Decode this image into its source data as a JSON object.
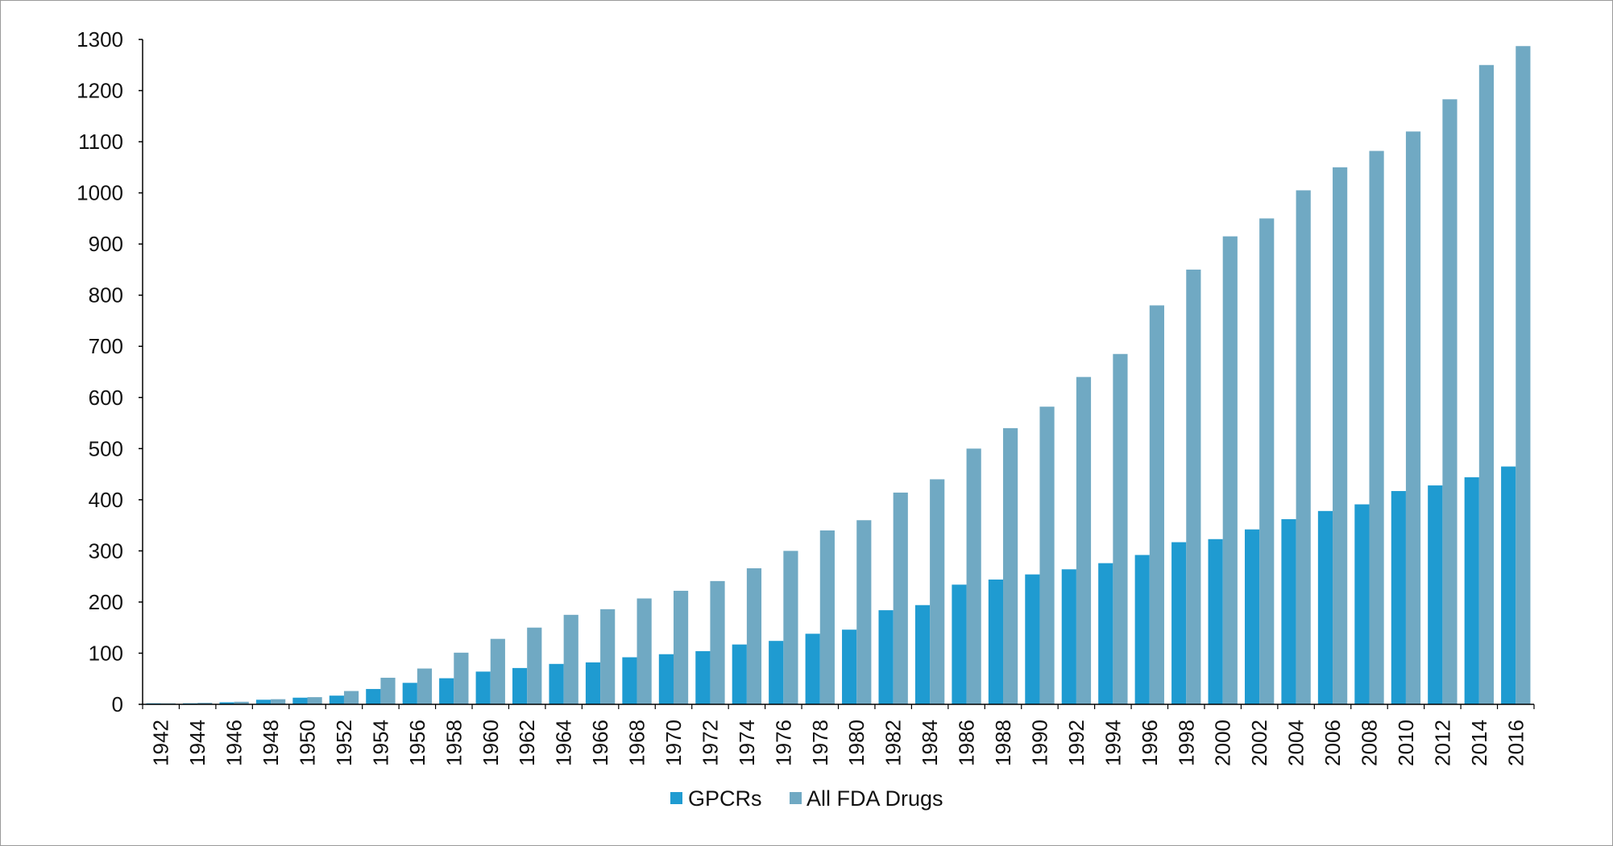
{
  "chart_data": {
    "type": "bar",
    "title": "",
    "xlabel": "",
    "ylabel": "",
    "ylim": [
      0,
      1300
    ],
    "yticks": [
      0,
      100,
      200,
      300,
      400,
      500,
      600,
      700,
      800,
      900,
      1000,
      1100,
      1200,
      1300
    ],
    "grid": false,
    "legend": "bottom-center",
    "categories": [
      "1942",
      "1944",
      "1946",
      "1948",
      "1950",
      "1952",
      "1954",
      "1956",
      "1958",
      "1960",
      "1962",
      "1964",
      "1966",
      "1968",
      "1970",
      "1972",
      "1974",
      "1976",
      "1978",
      "1980",
      "1982",
      "1984",
      "1986",
      "1988",
      "1990",
      "1992",
      "1994",
      "1996",
      "1998",
      "2000",
      "2002",
      "2004",
      "2006",
      "2008",
      "2010",
      "2012",
      "2014",
      "2016"
    ],
    "series": [
      {
        "name": "GPCRs",
        "color": "#1f9bd1",
        "values": [
          2,
          2,
          4,
          9,
          13,
          17,
          30,
          42,
          51,
          64,
          71,
          79,
          82,
          92,
          98,
          104,
          117,
          124,
          138,
          146,
          184,
          194,
          234,
          244,
          254,
          264,
          276,
          292,
          317,
          323,
          342,
          362,
          378,
          391,
          417,
          428,
          444,
          465
        ]
      },
      {
        "name": "All FDA Drugs",
        "color": "#70a9c3",
        "values": [
          2,
          3,
          5,
          10,
          14,
          26,
          52,
          70,
          101,
          128,
          150,
          175,
          186,
          207,
          222,
          241,
          266,
          300,
          340,
          360,
          414,
          440,
          500,
          540,
          582,
          640,
          685,
          780,
          850,
          915,
          950,
          1005,
          1050,
          1082,
          1120,
          1183,
          1250,
          1287
        ]
      }
    ]
  }
}
